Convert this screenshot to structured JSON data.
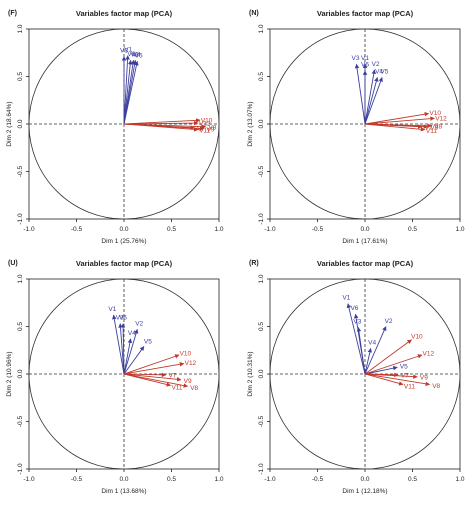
{
  "chart_data": [
    {
      "type": "scatter",
      "panel_tag": "(F)",
      "title": "Variables factor map (PCA)",
      "xlabel": "Dim 1 (25.76%)",
      "ylabel": "Dim 2 (18.64%)",
      "xlim": [
        -1.0,
        1.0
      ],
      "ylim": [
        -1.0,
        1.0
      ],
      "xticks": [
        "-1.0",
        "-0.5",
        "0.0",
        "0.5",
        "1.0"
      ],
      "yticks": [
        "-1.0",
        "-0.5",
        "0.0",
        "0.5",
        "1.0"
      ],
      "unit_circle": true,
      "reference_lines": "dashed at x=0 and y=0",
      "colors": {
        "blue": "#3b3f9e",
        "red": "#c0392b"
      },
      "series": [
        {
          "color": "blue",
          "vectors": [
            {
              "label": "V3",
              "x": 0.0,
              "y": 0.71
            },
            {
              "label": "V1",
              "x": 0.04,
              "y": 0.72
            },
            {
              "label": "V6",
              "x": 0.07,
              "y": 0.67
            },
            {
              "label": "V2",
              "x": 0.1,
              "y": 0.67
            },
            {
              "label": "V4",
              "x": 0.12,
              "y": 0.67
            },
            {
              "label": "V5",
              "x": 0.14,
              "y": 0.66
            }
          ]
        },
        {
          "color": "red",
          "vectors": [
            {
              "label": "V10",
              "x": 0.8,
              "y": 0.04
            },
            {
              "label": "V12",
              "x": 0.78,
              "y": 0.01
            },
            {
              "label": "V8",
              "x": 0.86,
              "y": -0.03
            },
            {
              "label": "V9",
              "x": 0.84,
              "y": -0.05
            },
            {
              "label": "V7",
              "x": 0.74,
              "y": -0.04
            },
            {
              "label": "V11",
              "x": 0.78,
              "y": -0.06
            }
          ]
        }
      ]
    },
    {
      "type": "scatter",
      "panel_tag": "(N)",
      "title": "Variables factor map (PCA)",
      "xlabel": "Dim 1 (17.61%)",
      "ylabel": "Dim 2 (13.07%)",
      "xlim": [
        -1.0,
        1.0
      ],
      "ylim": [
        -1.0,
        1.0
      ],
      "xticks": [
        "-1.0",
        "-0.5",
        "0.0",
        "0.5",
        "1.0"
      ],
      "yticks": [
        "-1.0",
        "-0.5",
        "0.0",
        "0.5",
        "1.0"
      ],
      "unit_circle": true,
      "reference_lines": "dashed at x=0 and y=0",
      "colors": {
        "blue": "#3b3f9e",
        "red": "#c0392b"
      },
      "series": [
        {
          "color": "blue",
          "vectors": [
            {
              "label": "V3",
              "x": -0.09,
              "y": 0.63
            },
            {
              "label": "V1",
              "x": 0.0,
              "y": 0.63
            },
            {
              "label": "V6",
              "x": 0.0,
              "y": 0.56
            },
            {
              "label": "V2",
              "x": 0.1,
              "y": 0.57
            },
            {
              "label": "V4",
              "x": 0.13,
              "y": 0.49
            },
            {
              "label": "V5",
              "x": 0.18,
              "y": 0.49
            }
          ]
        },
        {
          "color": "red",
          "vectors": [
            {
              "label": "V10",
              "x": 0.67,
              "y": 0.11
            },
            {
              "label": "V12",
              "x": 0.73,
              "y": 0.06
            },
            {
              "label": "V8",
              "x": 0.7,
              "y": -0.02
            },
            {
              "label": "V9",
              "x": 0.66,
              "y": -0.03
            },
            {
              "label": "V7",
              "x": 0.6,
              "y": -0.03
            },
            {
              "label": "V11",
              "x": 0.63,
              "y": -0.06
            }
          ]
        }
      ]
    },
    {
      "type": "scatter",
      "panel_tag": "(U)",
      "title": "Variables factor map (PCA)",
      "xlabel": "Dim 1 (13.68%)",
      "ylabel": "Dim 2 (10.96%)",
      "xlim": [
        -1.0,
        1.0
      ],
      "ylim": [
        -1.0,
        1.0
      ],
      "xticks": [
        "-1.0",
        "-0.5",
        "0.0",
        "0.5",
        "1.0"
      ],
      "yticks": [
        "-1.0",
        "-0.5",
        "0.0",
        "0.5",
        "1.0"
      ],
      "unit_circle": true,
      "reference_lines": "dashed at x=0 and y=0",
      "colors": {
        "blue": "#3b3f9e",
        "red": "#c0392b"
      },
      "series": [
        {
          "color": "blue",
          "vectors": [
            {
              "label": "V1",
              "x": -0.11,
              "y": 0.62
            },
            {
              "label": "V3",
              "x": -0.04,
              "y": 0.53
            },
            {
              "label": "V6",
              "x": -0.01,
              "y": 0.53
            },
            {
              "label": "V2",
              "x": 0.14,
              "y": 0.47
            },
            {
              "label": "V4",
              "x": 0.07,
              "y": 0.37
            },
            {
              "label": "V5",
              "x": 0.21,
              "y": 0.29
            }
          ]
        },
        {
          "color": "red",
          "vectors": [
            {
              "label": "V10",
              "x": 0.58,
              "y": 0.2
            },
            {
              "label": "V12",
              "x": 0.63,
              "y": 0.11
            },
            {
              "label": "V7",
              "x": 0.44,
              "y": -0.01
            },
            {
              "label": "V9",
              "x": 0.6,
              "y": -0.06
            },
            {
              "label": "V8",
              "x": 0.67,
              "y": -0.13
            },
            {
              "label": "V11",
              "x": 0.49,
              "y": -0.12
            }
          ]
        }
      ]
    },
    {
      "type": "scatter",
      "panel_tag": "(R)",
      "title": "Variables factor map (PCA)",
      "xlabel": "Dim 1 (12.18%)",
      "ylabel": "Dim 2 (10.31%)",
      "xlim": [
        -1.0,
        1.0
      ],
      "ylim": [
        -1.0,
        1.0
      ],
      "xticks": [
        "-1.0",
        "-0.5",
        "0.0",
        "0.5",
        "1.0"
      ],
      "yticks": [
        "-1.0",
        "-0.5",
        "0.0",
        "0.5",
        "1.0"
      ],
      "unit_circle": true,
      "reference_lines": "dashed at x=0 and y=0",
      "colors": {
        "blue": "#3b3f9e",
        "red": "#c0392b"
      },
      "series": [
        {
          "color": "blue",
          "vectors": [
            {
              "label": "V1",
              "x": -0.18,
              "y": 0.74
            },
            {
              "label": "V6",
              "x": -0.1,
              "y": 0.63
            },
            {
              "label": "V3",
              "x": -0.07,
              "y": 0.49
            },
            {
              "label": "V2",
              "x": 0.22,
              "y": 0.5
            },
            {
              "label": "V4",
              "x": 0.06,
              "y": 0.27
            },
            {
              "label": "V5",
              "x": 0.34,
              "y": 0.07
            }
          ]
        },
        {
          "color": "red",
          "vectors": [
            {
              "label": "V10",
              "x": 0.49,
              "y": 0.36
            },
            {
              "label": "V12",
              "x": 0.6,
              "y": 0.2
            },
            {
              "label": "V7",
              "x": 0.35,
              "y": -0.01
            },
            {
              "label": "V9",
              "x": 0.55,
              "y": -0.03
            },
            {
              "label": "V8",
              "x": 0.68,
              "y": -0.11
            },
            {
              "label": "V11",
              "x": 0.4,
              "y": -0.11
            }
          ]
        }
      ]
    }
  ]
}
